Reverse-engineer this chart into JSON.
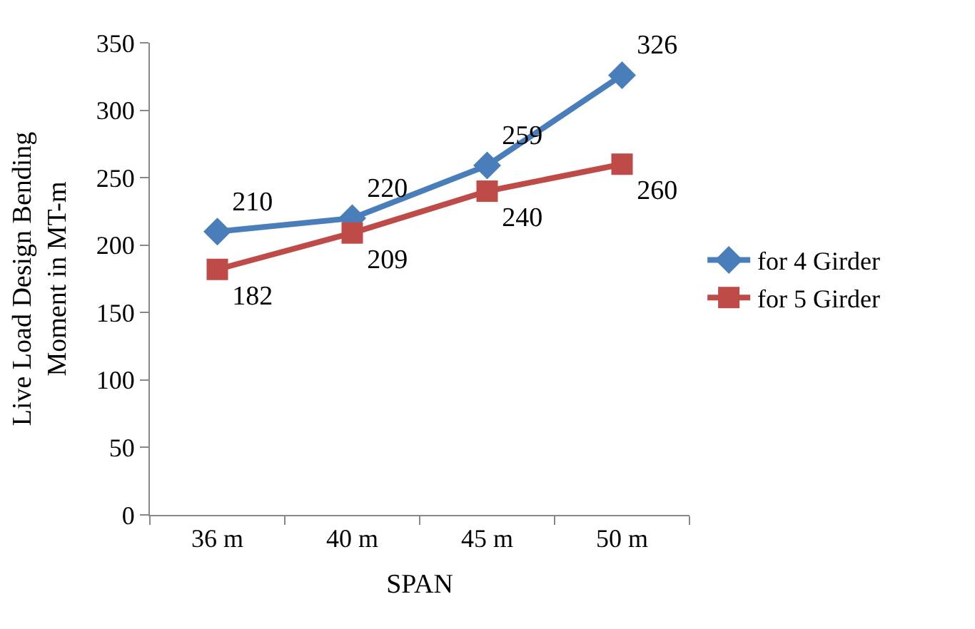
{
  "chart_data": {
    "type": "line",
    "xlabel": "SPAN",
    "ylabel": "Live Load Design Bending Moment in MT-m",
    "categories": [
      "36 m",
      "40 m",
      "45 m",
      "50 m"
    ],
    "series": [
      {
        "name": "for 4 Girder",
        "color": "#4a7ebb",
        "marker": "diamond",
        "values": [
          210,
          220,
          259,
          326
        ]
      },
      {
        "name": "for 5 Girder",
        "color": "#be4b48",
        "marker": "square",
        "values": [
          182,
          209,
          240,
          260
        ]
      }
    ],
    "ylim": [
      0,
      350
    ],
    "yticks": [
      0,
      50,
      100,
      150,
      200,
      250,
      300,
      350
    ],
    "legend": "right",
    "data_labels": true,
    "line_style": "solid"
  }
}
